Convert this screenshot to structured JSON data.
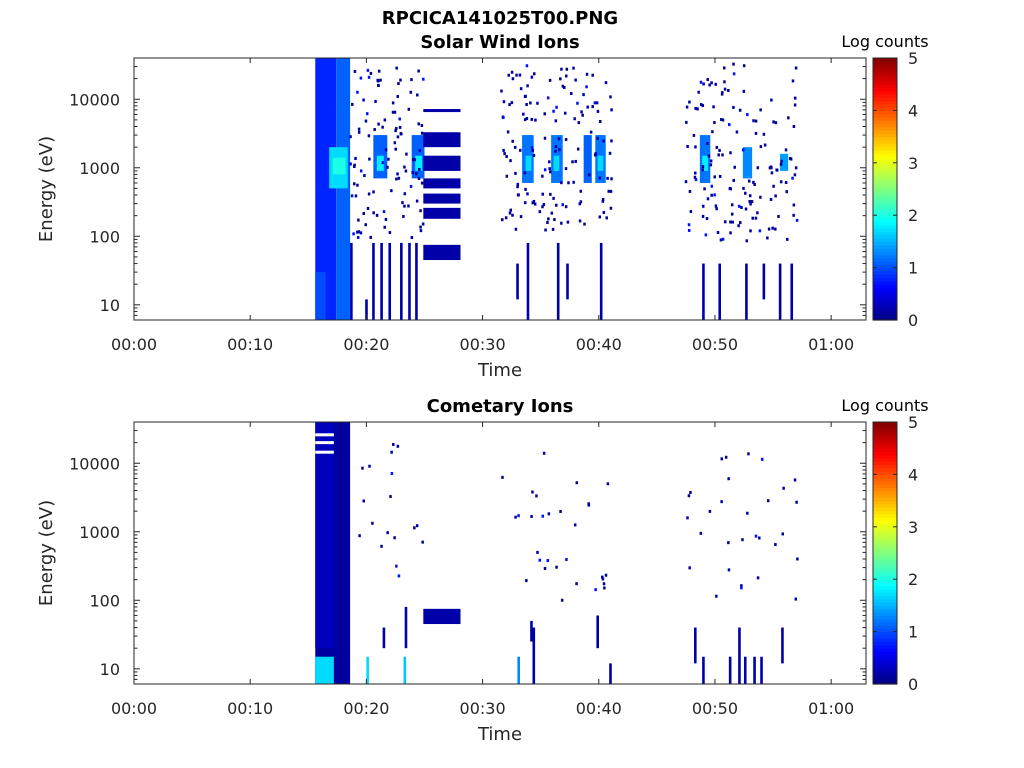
{
  "figure_title": "RPCICA141025T00.PNG",
  "colorbar_label": "Log counts",
  "chart_data": [
    {
      "type": "heatmap",
      "title": "Solar Wind Ions",
      "xlabel": "Time",
      "ylabel": "Energy (eV)",
      "x_unit": "minutes",
      "xlim": [
        0,
        63
      ],
      "ylim": [
        6,
        40000
      ],
      "y_scale": "log",
      "x_ticks": [
        0,
        10,
        20,
        30,
        40,
        50,
        60
      ],
      "x_tick_labels": [
        "00:00",
        "00:10",
        "00:20",
        "00:30",
        "00:40",
        "00:50",
        "01:00"
      ],
      "y_ticks": [
        10,
        100,
        1000,
        10000
      ],
      "y_tick_labels": [
        "10",
        "100",
        "1000",
        "10000"
      ],
      "colorbar": {
        "min": 0,
        "max": 5,
        "ticks": [
          "0",
          "1",
          "2",
          "3",
          "4",
          "5"
        ],
        "label": "Log counts",
        "colormap": "jet"
      },
      "cells": [
        {
          "t0": 15.6,
          "t1": 17.4,
          "e0": 6,
          "e1": 40000,
          "v": 0.8
        },
        {
          "t0": 15.6,
          "t1": 16.5,
          "e0": 6,
          "e1": 30,
          "v": 1.0
        },
        {
          "t0": 17.4,
          "t1": 18.6,
          "e0": 6,
          "e1": 40000,
          "v": 1.1
        },
        {
          "t0": 16.8,
          "t1": 18.4,
          "e0": 500,
          "e1": 2000,
          "v": 1.7
        },
        {
          "t0": 17.1,
          "t1": 18.2,
          "e0": 800,
          "e1": 1400,
          "v": 2.0
        },
        {
          "t0": 20.6,
          "t1": 21.8,
          "e0": 700,
          "e1": 3000,
          "v": 1.1
        },
        {
          "t0": 20.9,
          "t1": 21.5,
          "e0": 900,
          "e1": 1500,
          "v": 1.8
        },
        {
          "t0": 23.9,
          "t1": 25.0,
          "e0": 700,
          "e1": 3000,
          "v": 1.1
        },
        {
          "t0": 24.2,
          "t1": 24.8,
          "e0": 900,
          "e1": 1500,
          "v": 1.8
        },
        {
          "t0": 24.9,
          "t1": 28.1,
          "e0": 2000,
          "e1": 3300,
          "v": 0.2
        },
        {
          "t0": 24.9,
          "t1": 28.1,
          "e0": 900,
          "e1": 1500,
          "v": 0.2
        },
        {
          "t0": 24.9,
          "t1": 28.1,
          "e0": 500,
          "e1": 700,
          "v": 0.2
        },
        {
          "t0": 24.9,
          "t1": 28.1,
          "e0": 300,
          "e1": 420,
          "v": 0.2
        },
        {
          "t0": 24.9,
          "t1": 28.1,
          "e0": 180,
          "e1": 260,
          "v": 0.2
        },
        {
          "t0": 24.9,
          "t1": 28.1,
          "e0": 45,
          "e1": 75,
          "v": 0.2
        },
        {
          "t0": 24.9,
          "t1": 28.1,
          "e0": 6500,
          "e1": 7200,
          "v": 0.2
        },
        {
          "t0": 33.4,
          "t1": 34.4,
          "e0": 600,
          "e1": 3000,
          "v": 1.2
        },
        {
          "t0": 33.7,
          "t1": 34.2,
          "e0": 900,
          "e1": 1500,
          "v": 1.7
        },
        {
          "t0": 35.9,
          "t1": 36.9,
          "e0": 600,
          "e1": 3000,
          "v": 1.2
        },
        {
          "t0": 36.1,
          "t1": 36.6,
          "e0": 900,
          "e1": 1500,
          "v": 1.7
        },
        {
          "t0": 38.7,
          "t1": 39.4,
          "e0": 600,
          "e1": 3000,
          "v": 1.1
        },
        {
          "t0": 39.7,
          "t1": 40.6,
          "e0": 600,
          "e1": 3000,
          "v": 1.2
        },
        {
          "t0": 39.9,
          "t1": 40.4,
          "e0": 900,
          "e1": 1500,
          "v": 1.7
        },
        {
          "t0": 48.7,
          "t1": 49.6,
          "e0": 600,
          "e1": 3000,
          "v": 1.2
        },
        {
          "t0": 48.9,
          "t1": 49.4,
          "e0": 900,
          "e1": 1500,
          "v": 1.8
        },
        {
          "t0": 52.4,
          "t1": 53.2,
          "e0": 700,
          "e1": 2000,
          "v": 1.3
        },
        {
          "t0": 55.6,
          "t1": 56.3,
          "e0": 900,
          "e1": 1600,
          "v": 1.4
        }
      ],
      "lines": [
        {
          "t": 18.7,
          "e0": 6,
          "e1": 80,
          "v": 0.2
        },
        {
          "t": 20.0,
          "e0": 6,
          "e1": 12,
          "v": 0.2
        },
        {
          "t": 20.6,
          "e0": 6,
          "e1": 80,
          "v": 0.2
        },
        {
          "t": 21.3,
          "e0": 6,
          "e1": 80,
          "v": 0.2
        },
        {
          "t": 22.0,
          "e0": 6,
          "e1": 80,
          "v": 0.2
        },
        {
          "t": 23.0,
          "e0": 6,
          "e1": 80,
          "v": 0.2
        },
        {
          "t": 23.7,
          "e0": 6,
          "e1": 80,
          "v": 0.2
        },
        {
          "t": 24.3,
          "e0": 6,
          "e1": 80,
          "v": 0.2
        },
        {
          "t": 33.0,
          "e0": 12,
          "e1": 40,
          "v": 0.2
        },
        {
          "t": 33.9,
          "e0": 6,
          "e1": 80,
          "v": 0.2
        },
        {
          "t": 36.5,
          "e0": 6,
          "e1": 80,
          "v": 0.2
        },
        {
          "t": 37.3,
          "e0": 12,
          "e1": 40,
          "v": 0.2
        },
        {
          "t": 40.2,
          "e0": 6,
          "e1": 80,
          "v": 0.2
        },
        {
          "t": 49.0,
          "e0": 6,
          "e1": 40,
          "v": 0.2
        },
        {
          "t": 50.4,
          "e0": 6,
          "e1": 40,
          "v": 0.2
        },
        {
          "t": 52.7,
          "e0": 6,
          "e1": 40,
          "v": 0.2
        },
        {
          "t": 54.2,
          "e0": 12,
          "e1": 40,
          "v": 0.2
        },
        {
          "t": 55.6,
          "e0": 6,
          "e1": 40,
          "v": 0.2
        },
        {
          "t": 56.6,
          "e0": 6,
          "e1": 40,
          "v": 0.2
        }
      ],
      "speckle_regions": [
        {
          "t0": 18.5,
          "t1": 24.8,
          "e0": 100,
          "e1": 30000,
          "count": 110
        },
        {
          "t0": 31.5,
          "t1": 41.0,
          "e0": 130,
          "e1": 35000,
          "count": 150
        },
        {
          "t0": 47.3,
          "t1": 57.0,
          "e0": 90,
          "e1": 35000,
          "count": 150
        }
      ]
    },
    {
      "type": "heatmap",
      "title": "Cometary Ions",
      "xlabel": "Time",
      "ylabel": "Energy (eV)",
      "x_unit": "minutes",
      "xlim": [
        0,
        63
      ],
      "ylim": [
        6,
        40000
      ],
      "y_scale": "log",
      "x_ticks": [
        0,
        10,
        20,
        30,
        40,
        50,
        60
      ],
      "x_tick_labels": [
        "00:00",
        "00:10",
        "00:20",
        "00:30",
        "00:40",
        "00:50",
        "01:00"
      ],
      "y_ticks": [
        10,
        100,
        1000,
        10000
      ],
      "y_tick_labels": [
        "10",
        "100",
        "1000",
        "10000"
      ],
      "colorbar": {
        "min": 0,
        "max": 5,
        "ticks": [
          "0",
          "1",
          "2",
          "3",
          "4",
          "5"
        ],
        "label": "Log counts",
        "colormap": "jet"
      },
      "cells": [
        {
          "t0": 15.6,
          "t1": 18.6,
          "e0": 6,
          "e1": 40000,
          "v": 0.15
        },
        {
          "t0": 15.6,
          "t1": 17.2,
          "e0": 20,
          "e1": 40000,
          "v": 0.3
        },
        {
          "t0": 15.6,
          "t1": 17.2,
          "e0": 6,
          "e1": 15,
          "v": 1.7
        },
        {
          "t0": 24.9,
          "t1": 28.1,
          "e0": 45,
          "e1": 75,
          "v": 0.2
        }
      ],
      "lines": [
        {
          "t": 20.1,
          "e0": 6,
          "e1": 15,
          "v": 1.7
        },
        {
          "t": 23.3,
          "e0": 6,
          "e1": 15,
          "v": 1.6
        },
        {
          "t": 33.1,
          "e0": 6,
          "e1": 15,
          "v": 1.3
        },
        {
          "t": 21.5,
          "e0": 20,
          "e1": 40,
          "v": 0.2
        },
        {
          "t": 23.4,
          "e0": 20,
          "e1": 80,
          "v": 0.2
        },
        {
          "t": 34.4,
          "e0": 6,
          "e1": 40,
          "v": 0.2
        },
        {
          "t": 34.2,
          "e0": 25,
          "e1": 50,
          "v": 0.2
        },
        {
          "t": 39.9,
          "e0": 20,
          "e1": 60,
          "v": 0.2
        },
        {
          "t": 41.0,
          "e0": 6,
          "e1": 12,
          "v": 0.2
        },
        {
          "t": 48.3,
          "e0": 12,
          "e1": 40,
          "v": 0.2
        },
        {
          "t": 49.0,
          "e0": 6,
          "e1": 15,
          "v": 0.2
        },
        {
          "t": 51.3,
          "e0": 6,
          "e1": 15,
          "v": 0.2
        },
        {
          "t": 52.1,
          "e0": 6,
          "e1": 40,
          "v": 0.2
        },
        {
          "t": 52.6,
          "e0": 6,
          "e1": 15,
          "v": 0.2
        },
        {
          "t": 53.4,
          "e0": 6,
          "e1": 15,
          "v": 0.2
        },
        {
          "t": 54.0,
          "e0": 6,
          "e1": 15,
          "v": 0.2
        },
        {
          "t": 55.8,
          "e0": 12,
          "e1": 40,
          "v": 0.2
        }
      ],
      "speckle_regions": [
        {
          "t0": 19.0,
          "t1": 25.0,
          "e0": 200,
          "e1": 20000,
          "count": 18
        },
        {
          "t0": 31.5,
          "t1": 41.0,
          "e0": 100,
          "e1": 15000,
          "count": 30
        },
        {
          "t0": 47.3,
          "t1": 57.0,
          "e0": 100,
          "e1": 15000,
          "count": 30
        }
      ],
      "white_gaps": [
        {
          "t0": 15.6,
          "t1": 17.2,
          "e": 26000
        },
        {
          "t0": 15.6,
          "t1": 17.2,
          "e": 20000
        },
        {
          "t0": 15.6,
          "t1": 17.2,
          "e": 14500
        }
      ]
    }
  ]
}
